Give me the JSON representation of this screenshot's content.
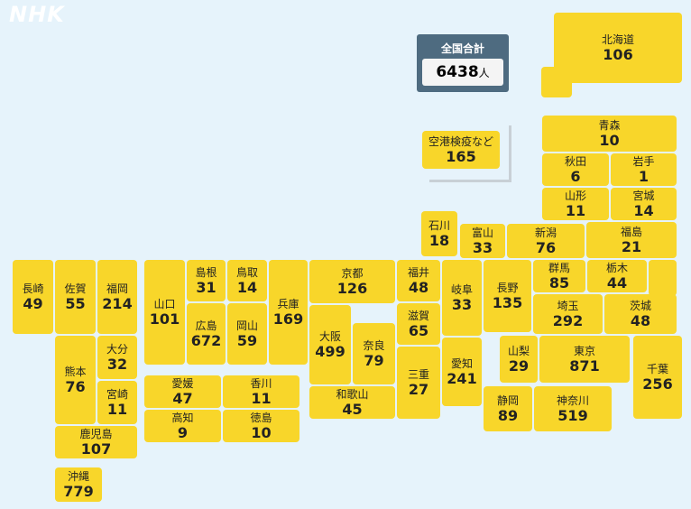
{
  "logo": "NHK",
  "total": {
    "label": "全国合計",
    "value": 6438,
    "unit": "人"
  },
  "airport": {
    "name": "空港検疫など",
    "value": 165
  },
  "prefectures": [
    {
      "name": "北海道",
      "value": 106
    },
    {
      "name": "青森",
      "value": 10
    },
    {
      "name": "秋田",
      "value": 6
    },
    {
      "name": "岩手",
      "value": 1
    },
    {
      "name": "山形",
      "value": 11
    },
    {
      "name": "宮城",
      "value": 14
    },
    {
      "name": "石川",
      "value": 18
    },
    {
      "name": "富山",
      "value": 33
    },
    {
      "name": "新潟",
      "value": 76
    },
    {
      "name": "福島",
      "value": 21
    },
    {
      "name": "群馬",
      "value": 85
    },
    {
      "name": "栃木",
      "value": 44
    },
    {
      "name": "茨城",
      "value": 48
    },
    {
      "name": "埼玉",
      "value": 292
    },
    {
      "name": "長野",
      "value": 135
    },
    {
      "name": "岐阜",
      "value": 33
    },
    {
      "name": "福井",
      "value": 48
    },
    {
      "name": "滋賀",
      "value": 65
    },
    {
      "name": "京都",
      "value": 126
    },
    {
      "name": "兵庫",
      "value": 169
    },
    {
      "name": "鳥取",
      "value": 14
    },
    {
      "name": "島根",
      "value": 31
    },
    {
      "name": "山口",
      "value": 101
    },
    {
      "name": "広島",
      "value": 672
    },
    {
      "name": "岡山",
      "value": 59
    },
    {
      "name": "大阪",
      "value": 499
    },
    {
      "name": "奈良",
      "value": 79
    },
    {
      "name": "和歌山",
      "value": 45
    },
    {
      "name": "三重",
      "value": 27
    },
    {
      "name": "愛知",
      "value": 241
    },
    {
      "name": "山梨",
      "value": 29
    },
    {
      "name": "東京",
      "value": 871
    },
    {
      "name": "静岡",
      "value": 89
    },
    {
      "name": "神奈川",
      "value": 519
    },
    {
      "name": "千葉",
      "value": 256
    },
    {
      "name": "長崎",
      "value": 49
    },
    {
      "name": "佐賀",
      "value": 55
    },
    {
      "name": "福岡",
      "value": 214
    },
    {
      "name": "熊本",
      "value": 76
    },
    {
      "name": "大分",
      "value": 32
    },
    {
      "name": "宮崎",
      "value": 11
    },
    {
      "name": "鹿児島",
      "value": 107
    },
    {
      "name": "沖縄",
      "value": 779
    },
    {
      "name": "愛媛",
      "value": 47
    },
    {
      "name": "香川",
      "value": 11
    },
    {
      "name": "高知",
      "value": 9
    },
    {
      "name": "徳島",
      "value": 10
    }
  ]
}
